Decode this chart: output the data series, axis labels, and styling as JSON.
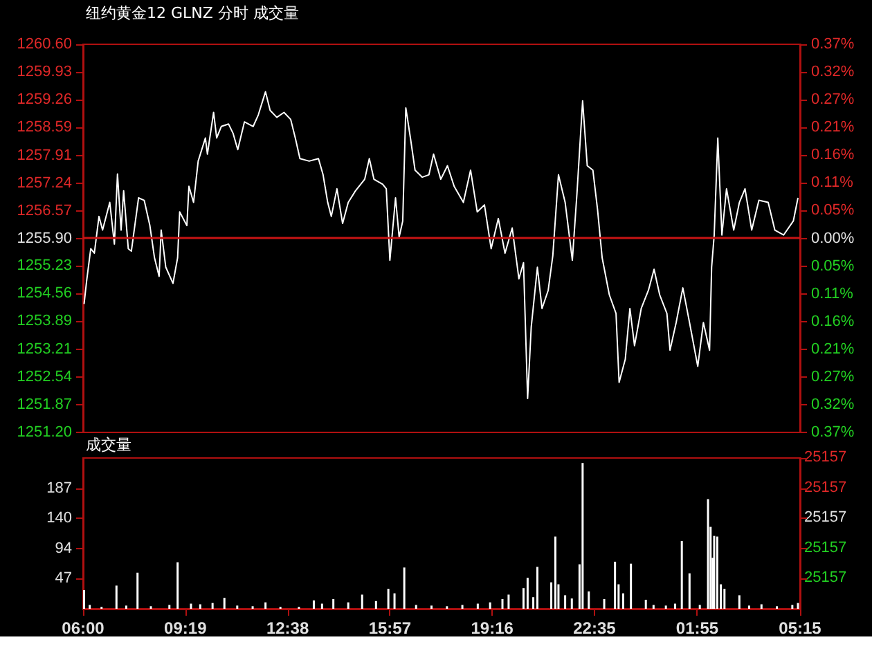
{
  "chart_data": [
    {
      "type": "line",
      "title": "纽约黄金12 GLNZ 分时 成交量",
      "grid": false,
      "tick_labels": "y",
      "xlim": [
        "--11-01T06:00",
        "--11-02T05:15"
      ],
      "ylim": [
        1251.2,
        1260.6
      ],
      "yticks": [
        {
          "value": 1251.2,
          "label": "1251.20"
        },
        1251.87,
        1252.54,
        1253.21,
        1253.89,
        1254.56,
        1255.23,
        {
          "value": 1255.9,
          "label": "1255.90"
        },
        1256.57,
        1257.24,
        1257.91,
        1258.59,
        1259.26,
        1259.93,
        {
          "value": 1260.6,
          "label": "1260.60"
        }
      ],
      "y2lim": [
        -0.3738,
        0.3738
      ],
      "y2ticks": [
        {
          "value": -0.3738,
          "label": "0.37%"
        },
        {
          "value": -0.3204,
          "label": "0.32%"
        },
        {
          "value": -0.267,
          "label": "0.27%"
        },
        {
          "value": -0.2136,
          "label": "0.21%"
        },
        {
          "value": -0.1602,
          "label": "0.16%"
        },
        {
          "value": -0.1068,
          "label": "0.11%"
        },
        {
          "value": -0.0534,
          "label": "0.05%"
        },
        {
          "value": 0,
          "label": "0.00%"
        },
        {
          "value": 0.0534,
          "label": "0.05%"
        },
        {
          "value": 0.1068,
          "label": "0.11%"
        },
        {
          "value": 0.1602,
          "label": "0.16%"
        },
        {
          "value": 0.2136,
          "label": "0.21%"
        },
        {
          "value": 0.267,
          "label": "0.27%"
        },
        {
          "value": 0.3204,
          "label": "0.32%"
        },
        {
          "value": 0.3738,
          "label": "0.37%"
        }
      ],
      "ref_lines": [
        {
          "axis": "y",
          "value": 1255.9,
          "color": "#c81414"
        }
      ],
      "series": [
        {
          "color": "#ffffff",
          "x": [
            "--11-01T06:02",
            "--11-01T06:07",
            "--11-01T06:15",
            "--11-01T06:22",
            "--11-01T06:31",
            "--11-01T06:38",
            "--11-01T06:52",
            "--11-01T07:01",
            "--11-01T07:07",
            "--11-01T07:14",
            "--11-01T07:19",
            "--11-01T07:28",
            "--11-01T07:34",
            "--11-01T07:48",
            "--11-01T07:59",
            "--11-01T08:10",
            "--11-01T08:19",
            "--11-01T08:28",
            "--11-01T08:32",
            "--11-01T08:41",
            "--11-01T08:55",
            "--11-01T09:04",
            "--11-01T09:08",
            "--11-01T09:22",
            "--11-01T09:26",
            "--11-01T09:35",
            "--11-01T09:44",
            "--11-01T09:58",
            "--11-01T10:02",
            "--11-01T10:14",
            "--11-01T10:20",
            "--11-01T10:29",
            "--11-01T10:43",
            "--11-01T10:52",
            "--11-01T11:01",
            "--11-01T11:14",
            "--11-01T11:31",
            "--11-01T11:41",
            "--11-01T11:55",
            "--11-01T12:04",
            "--11-01T12:17",
            "--11-01T12:31",
            "--11-01T12:44",
            "--11-01T12:53",
            "--11-01T13:02",
            "--11-01T13:20",
            "--11-01T13:38",
            "--11-01T13:47",
            "--11-01T13:56",
            "--11-01T14:03",
            "--11-01T14:14",
            "--11-01T14:25",
            "--11-01T14:36",
            "--11-01T14:50",
            "--11-01T15:08",
            "--11-01T15:17",
            "--11-01T15:26",
            "--11-01T15:43",
            "--11-01T15:50",
            "--11-01T15:57",
            "--11-01T16:08",
            "--11-01T16:15",
            "--11-01T16:22",
            "--11-01T16:28",
            "--11-01T16:37",
            "--11-01T16:46",
            "--11-01T17:00",
            "--11-01T17:13",
            "--11-01T17:22",
            "--11-01T17:36",
            "--11-01T17:49",
            "--11-01T18:02",
            "--11-01T18:20",
            "--11-01T18:34",
            "--11-01T18:47",
            "--11-01T19:01",
            "--11-01T19:14",
            "--11-01T19:28",
            "--11-01T19:41",
            "--11-01T19:55",
            "--11-01T20:08",
            "--11-01T20:17",
            "--11-01T20:25",
            "--11-01T20:32",
            "--11-01T20:44",
            "--11-01T20:53",
            "--11-01T21:05",
            "--11-01T21:14",
            "--11-01T21:25",
            "--11-01T21:38",
            "--11-01T21:52",
            "--11-01T22:01",
            "--11-01T22:12",
            "--11-01T22:21",
            "--11-01T22:32",
            "--11-01T22:41",
            "--11-01T22:50",
            "--11-01T23:04",
            "--11-01T23:17",
            "--11-01T23:23",
            "--11-01T23:35",
            "--11-01T23:44",
            "--11-01T23:53",
            "--11-02T00:06",
            "--11-02T00:20",
            "--11-02T00:31",
            "--11-02T00:42",
            "--11-02T00:56",
            "--11-02T01:02",
            "--11-02T01:14",
            "--11-02T01:27",
            "--11-02T01:40",
            "--11-02T01:56",
            "--11-02T02:07",
            "--11-02T02:19",
            "--11-02T02:23",
            "--11-02T02:28",
            "--11-02T02:35",
            "--11-02T02:43",
            "--11-02T02:52",
            "--11-02T03:06",
            "--11-02T03:17",
            "--11-02T03:28",
            "--11-02T03:41",
            "--11-02T03:55",
            "--11-02T04:13",
            "--11-02T04:26",
            "--11-02T04:43",
            "--11-02T05:02",
            "--11-02T05:11"
          ],
          "values": [
            1254.31,
            1254.87,
            1255.65,
            1255.54,
            1256.43,
            1256.1,
            1256.77,
            1255.76,
            1257.46,
            1256.1,
            1257.05,
            1255.65,
            1255.59,
            1256.88,
            1256.82,
            1256.21,
            1255.43,
            1254.98,
            1256.1,
            1255.2,
            1254.81,
            1255.43,
            1256.54,
            1256.21,
            1257.16,
            1256.77,
            1257.77,
            1258.33,
            1257.94,
            1258.95,
            1258.33,
            1258.61,
            1258.67,
            1258.44,
            1258.05,
            1258.72,
            1258.61,
            1258.89,
            1259.45,
            1259.0,
            1258.83,
            1258.95,
            1258.78,
            1258.33,
            1257.83,
            1257.77,
            1257.83,
            1257.44,
            1256.77,
            1256.43,
            1257.1,
            1256.26,
            1256.77,
            1257.05,
            1257.33,
            1257.83,
            1257.33,
            1257.21,
            1257.1,
            1255.37,
            1256.88,
            1255.93,
            1256.32,
            1259.06,
            1258.33,
            1257.55,
            1257.38,
            1257.44,
            1257.94,
            1257.33,
            1257.66,
            1257.16,
            1256.77,
            1257.55,
            1256.54,
            1256.71,
            1255.65,
            1256.38,
            1255.54,
            1256.15,
            1254.92,
            1255.31,
            1252.02,
            1253.75,
            1255.2,
            1254.2,
            1254.64,
            1255.48,
            1257.44,
            1256.77,
            1255.37,
            1256.99,
            1259.23,
            1257.66,
            1257.55,
            1256.6,
            1255.43,
            1254.53,
            1254.08,
            1252.41,
            1252.97,
            1254.2,
            1253.3,
            1254.2,
            1254.64,
            1255.15,
            1254.53,
            1254.08,
            1253.19,
            1253.86,
            1254.7,
            1253.86,
            1252.8,
            1253.86,
            1253.19,
            1255.2,
            1255.98,
            1258.33,
            1255.98,
            1257.1,
            1256.1,
            1256.77,
            1257.1,
            1256.1,
            1256.82,
            1256.77,
            1256.1,
            1255.98,
            1256.32,
            1256.88
          ]
        }
      ]
    },
    {
      "type": "bar",
      "title": "成交量",
      "grid": false,
      "xlim": [
        "--11-01T06:00",
        "--11-02T05:15"
      ],
      "xticks": [
        {
          "value": "--11-01T06:00",
          "label": "06:00"
        },
        {
          "value": "--11-01T09:19",
          "label": "09:19"
        },
        {
          "value": "--11-01T12:38",
          "label": "12:38"
        },
        {
          "value": "--11-01T15:57",
          "label": "15:57"
        },
        {
          "value": "--11-01T19:16",
          "label": "19:16"
        },
        {
          "value": "--11-01T22:35",
          "label": "22:35"
        },
        {
          "value": "--11-02T01:55",
          "label": "01:55"
        },
        {
          "value": "--11-02T05:15",
          "label": "05:15"
        }
      ],
      "ylim": [
        0,
        233.75
      ],
      "yticks": [
        {
          "value": 46.75,
          "label": "47"
        },
        {
          "value": 93.5,
          "label": "94"
        },
        {
          "value": 140.25,
          "label": "140"
        },
        {
          "value": 187,
          "label": "187"
        }
      ],
      "annotations": [
        "25157",
        "25157",
        "25157",
        "25157",
        "25157"
      ],
      "series": [
        {
          "color": "#ffffff",
          "x": [
            "--11-01T06:02",
            "--11-01T06:13",
            "--11-01T06:36",
            "--11-01T07:05",
            "--11-01T07:24",
            "--11-01T07:46",
            "--11-01T08:12",
            "--11-01T08:48",
            "--11-01T09:04",
            "--11-01T09:30",
            "--11-01T09:48",
            "--11-01T10:12",
            "--11-01T10:35",
            "--11-01T11:00",
            "--11-01T11:30",
            "--11-01T11:55",
            "--11-01T12:24",
            "--11-01T13:00",
            "--11-01T13:29",
            "--11-01T13:45",
            "--11-01T14:07",
            "--11-01T14:36",
            "--11-01T15:03",
            "--11-01T15:30",
            "--11-01T15:54",
            "--11-01T16:06",
            "--11-01T16:25",
            "--11-01T16:48",
            "--11-01T17:18",
            "--11-01T17:48",
            "--11-01T18:18",
            "--11-01T18:48",
            "--11-01T19:12",
            "--11-01T19:36",
            "--11-01T19:48",
            "--11-01T20:17",
            "--11-01T20:25",
            "--11-01T20:36",
            "--11-01T20:44",
            "--11-01T21:11",
            "--11-01T21:19",
            "--11-01T21:25",
            "--11-01T21:38",
            "--11-01T21:51",
            "--11-01T22:06",
            "--11-01T22:12",
            "--11-01T22:24",
            "--11-01T22:54",
            "--11-01T23:15",
            "--11-01T23:22",
            "--11-01T23:31",
            "--11-01T23:46",
            "--11-02T00:15",
            "--11-02T00:30",
            "--11-02T00:54",
            "--11-02T01:12",
            "--11-02T01:25",
            "--11-02T01:40",
            "--11-02T02:00",
            "--11-02T02:16",
            "--11-02T02:21",
            "--11-02T02:25",
            "--11-02T02:28",
            "--11-02T02:34",
            "--11-02T02:41",
            "--11-02T02:48",
            "--11-02T03:17",
            "--11-02T03:36",
            "--11-02T04:00",
            "--11-02T04:30",
            "--11-02T05:00",
            "--11-02T05:11"
          ],
          "values": [
            29,
            6,
            3,
            36,
            5,
            56,
            4,
            6,
            72,
            8,
            7,
            9,
            17,
            5,
            4,
            10,
            3,
            3,
            13,
            8,
            15,
            10,
            22,
            12,
            31,
            24,
            64,
            6,
            5,
            4,
            6,
            8,
            10,
            15,
            22,
            32,
            48,
            18,
            65,
            41,
            112,
            38,
            21,
            16,
            69,
            226,
            27,
            15,
            73,
            38,
            24,
            70,
            14,
            6,
            5,
            8,
            105,
            55,
            6,
            170,
            127,
            79,
            113,
            112,
            38,
            31,
            21,
            5,
            7,
            4,
            6,
            9
          ]
        }
      ]
    }
  ]
}
